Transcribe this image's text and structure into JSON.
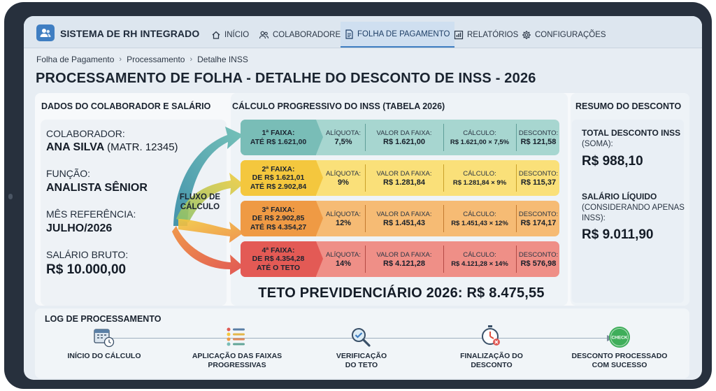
{
  "app": {
    "title": "SISTEMA DE RH INTEGRADO",
    "icon": "users-icon"
  },
  "nav": {
    "items": [
      {
        "label": "INÍCIO",
        "icon": "home-icon",
        "active": false
      },
      {
        "label": "COLABORADORES",
        "icon": "people-icon",
        "active": false
      },
      {
        "label": "FOLHA DE PAGAMENTO",
        "icon": "document-icon",
        "active": true
      },
      {
        "label": "RELATÓRIOS",
        "icon": "bar-chart-icon",
        "active": false
      },
      {
        "label": "CONFIGURAÇÕES",
        "icon": "gear-icon",
        "active": false
      }
    ]
  },
  "breadcrumb": [
    "Folha de Pagamento",
    "Processamento",
    "Detalhe INSS"
  ],
  "page_title": "PROCESSAMENTO DE FOLHA - DETALHE DO DESCONTO DE INSS - 2026",
  "employee": {
    "heading": "DADOS DO COLABORADOR E SALÁRIO",
    "name_label": "COLABORADOR:",
    "name": "ANA SILVA",
    "registration": "(MATR. 12345)",
    "role_label": "FUNÇÃO:",
    "role": "ANALISTA SÊNIOR",
    "month_label": "MÊS REFERÊNCIA:",
    "month": "JULHO/2026",
    "salary_label": "SALÁRIO BRUTO:",
    "salary": "R$ 10.000,00"
  },
  "flow_label": [
    "FLUXO DE",
    "CÁLCULO"
  ],
  "calc": {
    "heading": "CÁLCULO PROGRESSIVO DO INSS (TABELA 2026)",
    "col_labels": {
      "rate": "ALÍQUOTA:",
      "amount": "VALOR DA FAIXA:",
      "calc": "CÁLCULO:",
      "discount": "DESCONTO:"
    },
    "bands": [
      {
        "title": "1ª FAIXA:",
        "range": [
          "ATÉ R$ 1.621,00"
        ],
        "rate": "7,5%",
        "amount": "R$ 1.621,00",
        "calc": "R$ 1.621,00 × 7,5%",
        "discount": "R$ 121,58",
        "color_dark": "#79bdb7",
        "color_light": "#a7d6d0",
        "divider": "#5f9e98"
      },
      {
        "title": "2ª FAIXA:",
        "range": [
          "DE R$ 1.621,01",
          "ATÉ R$ 2.902,84"
        ],
        "rate": "9%",
        "amount": "R$ 1.281,84",
        "calc": "R$ 1.281,84 × 9%",
        "discount": "R$ 115,37",
        "color_dark": "#f4c73e",
        "color_light": "#fae079",
        "divider": "#c9a12a"
      },
      {
        "title": "3ª FAIXA:",
        "range": [
          "DE R$ 2.902,85",
          "ATÉ R$ 4.354,27"
        ],
        "rate": "12%",
        "amount": "R$ 1.451,43",
        "calc": "R$ 1.451,43 × 12%",
        "discount": "R$ 174,17",
        "color_dark": "#ef9a44",
        "color_light": "#f6bb74",
        "divider": "#c27a30"
      },
      {
        "title": "4ª FAIXA:",
        "range": [
          "DE R$ 4.354,28",
          "ATÉ O TETO"
        ],
        "rate": "14%",
        "amount": "R$ 4.121,28",
        "calc": "R$ 4.121,28 × 14%",
        "discount": "R$ 576,98",
        "color_dark": "#e35a55",
        "color_light": "#ef8f87",
        "divider": "#b44a45"
      }
    ],
    "ceiling": "TETO PREVIDENCIÁRIO 2026: R$ 8.475,55"
  },
  "summary": {
    "heading": "RESUMO DO DESCONTO",
    "total_label": "TOTAL DESCONTO INSS",
    "total_sub": "(SOMA):",
    "total_value": "R$ 988,10",
    "net_label": "SALÁRIO LÍQUIDO",
    "net_sub": [
      "(CONSIDERANDO APENAS",
      "INSS):"
    ],
    "net_value": "R$ 9.011,90"
  },
  "log": {
    "heading": "LOG DE PROCESSAMENTO",
    "steps": [
      {
        "label": [
          "INÍCIO DO CÁLCULO"
        ],
        "icon": "calendar-clock-icon"
      },
      {
        "label": [
          "APLICAÇÃO DAS FAIXAS",
          "PROGRESSIVAS"
        ],
        "icon": "checklist-icon"
      },
      {
        "label": [
          "VERIFICAÇÃO",
          "DO TETO"
        ],
        "icon": "magnifier-check-icon"
      },
      {
        "label": [
          "FINALIZAÇÃO DO",
          "DESCONTO"
        ],
        "icon": "stopwatch-icon"
      },
      {
        "label": [
          "DESCONTO PROCESSADO",
          "COM SUCESSO"
        ],
        "icon": "check-badge-icon",
        "badge": "CHECK"
      }
    ]
  }
}
